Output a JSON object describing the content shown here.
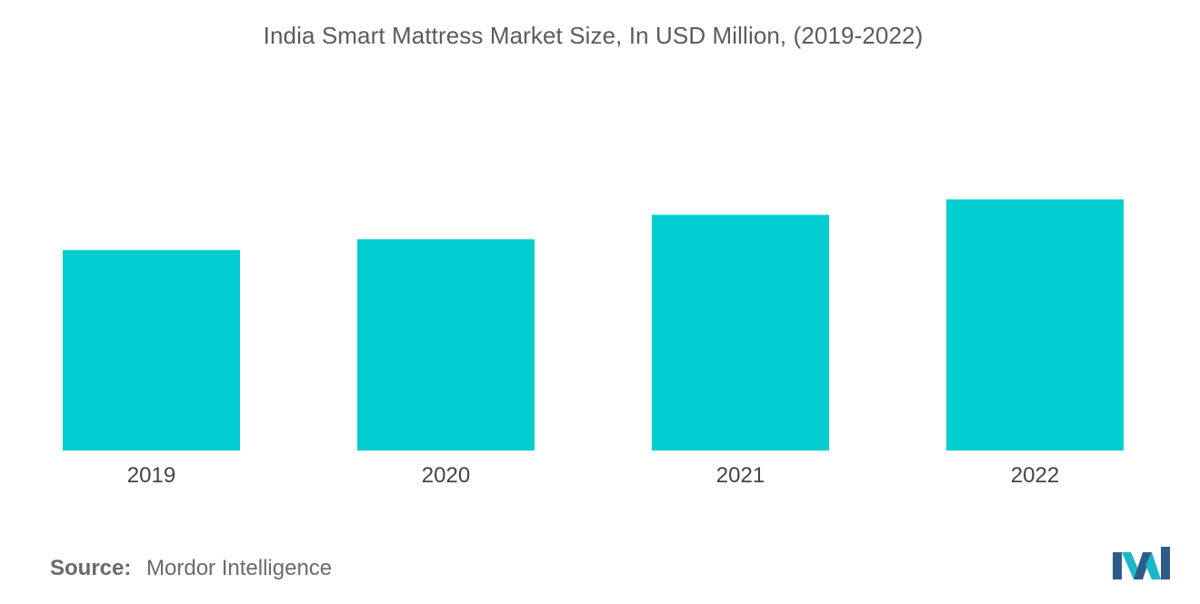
{
  "chart_data": {
    "type": "bar",
    "title": "India Smart Mattress Market Size, In USD Million, (2019-2022)",
    "categories": [
      "2019",
      "2020",
      "2021",
      "2022"
    ],
    "values": [
      100,
      105.4,
      117.6,
      125.3
    ],
    "ylim": [
      0,
      145
    ],
    "xlabel": "",
    "ylabel": "",
    "grid": false,
    "bar_color": "#00ced1"
  },
  "footer": {
    "source_label": "Source:",
    "source_value": "Mordor Intelligence"
  },
  "logo": {
    "icon": "mordor-intelligence-logo-icon",
    "colors": [
      "#2e5c8a",
      "#18b7c9"
    ]
  }
}
